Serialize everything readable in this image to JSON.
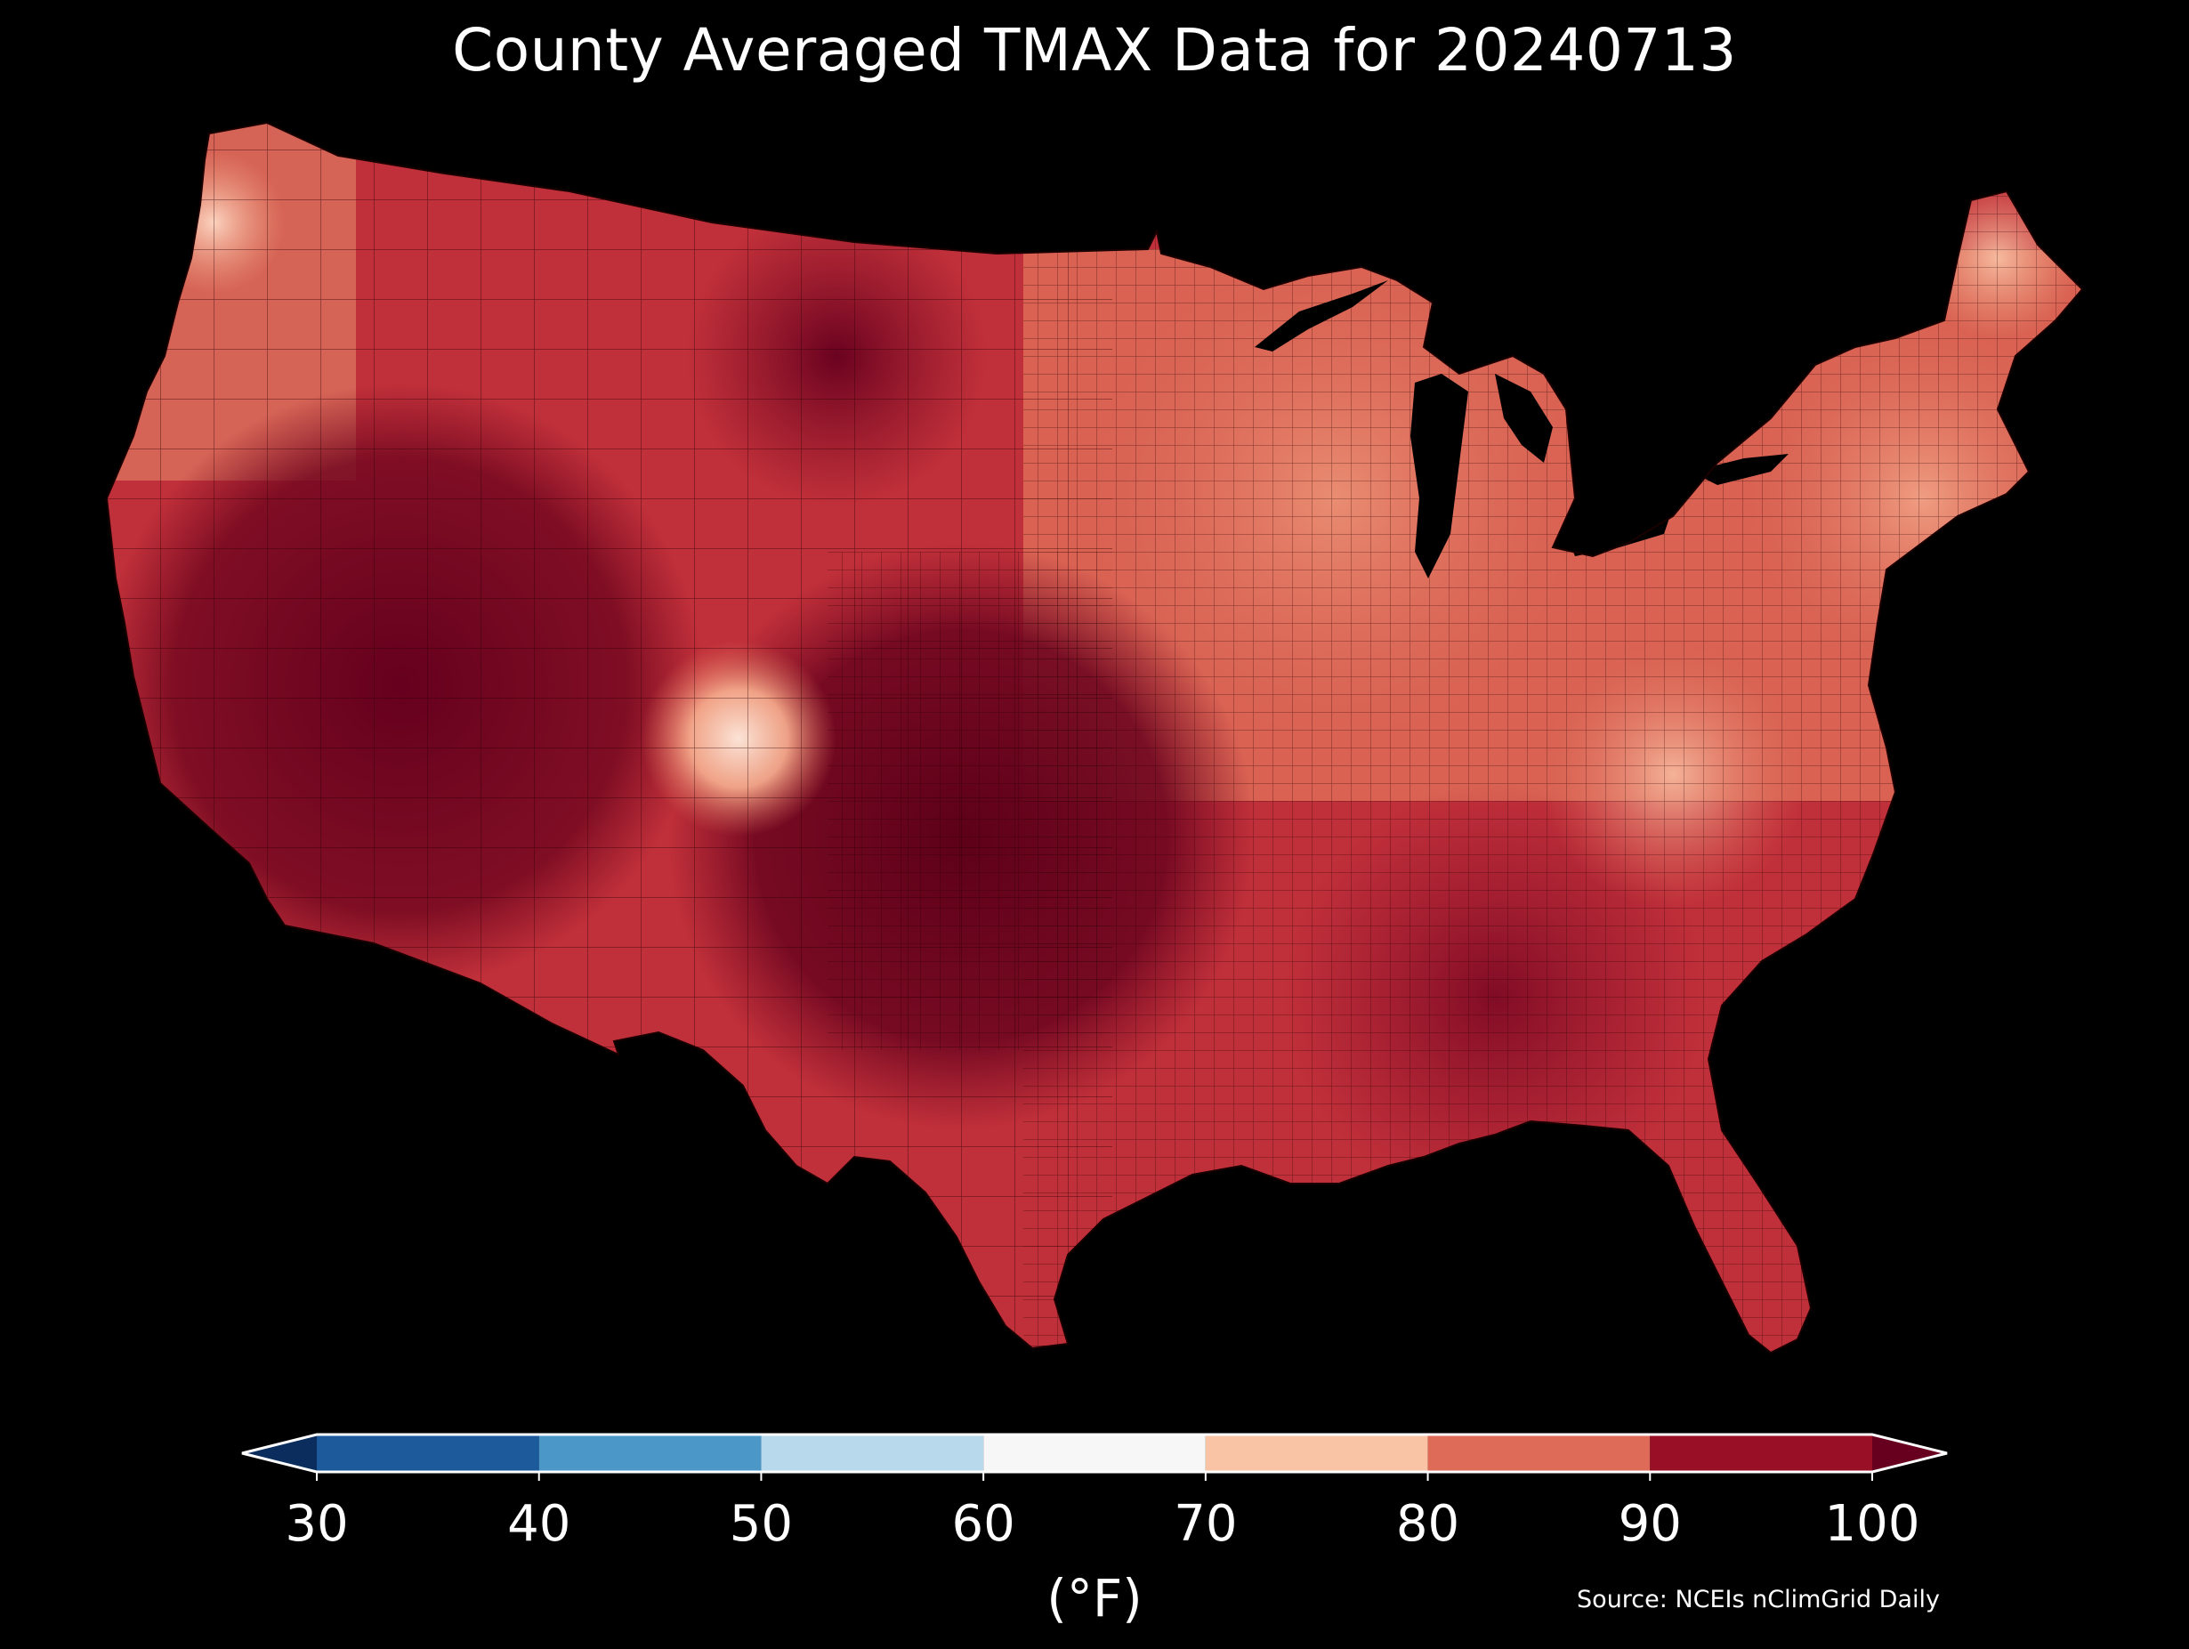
{
  "title": "County Averaged TMAX Data for 20240713",
  "source": "Source: NCEIs nClimGrid Daily",
  "colorbar": {
    "unit": "(°F)",
    "min": 30,
    "max": 100,
    "extend": "both",
    "ticks": [
      "30",
      "40",
      "50",
      "60",
      "70",
      "80",
      "90",
      "100"
    ],
    "bins": [
      {
        "from": 30,
        "to": 40,
        "color": "#1d5a9c"
      },
      {
        "from": 40,
        "to": 50,
        "color": "#4b98c8"
      },
      {
        "from": 50,
        "to": 60,
        "color": "#b8d9eb"
      },
      {
        "from": 60,
        "to": 70,
        "color": "#f7f7f7"
      },
      {
        "from": 70,
        "to": 80,
        "color": "#f9c3a6"
      },
      {
        "from": 80,
        "to": 90,
        "color": "#dd6b58"
      },
      {
        "from": 90,
        "to": 100,
        "color": "#990f26"
      }
    ],
    "under_color": "#0a2d5e",
    "over_color": "#67001f"
  },
  "map": {
    "region": "Contiguous United States",
    "unit": "county",
    "background_color": "#000000",
    "border_color": "#2a0000"
  }
}
